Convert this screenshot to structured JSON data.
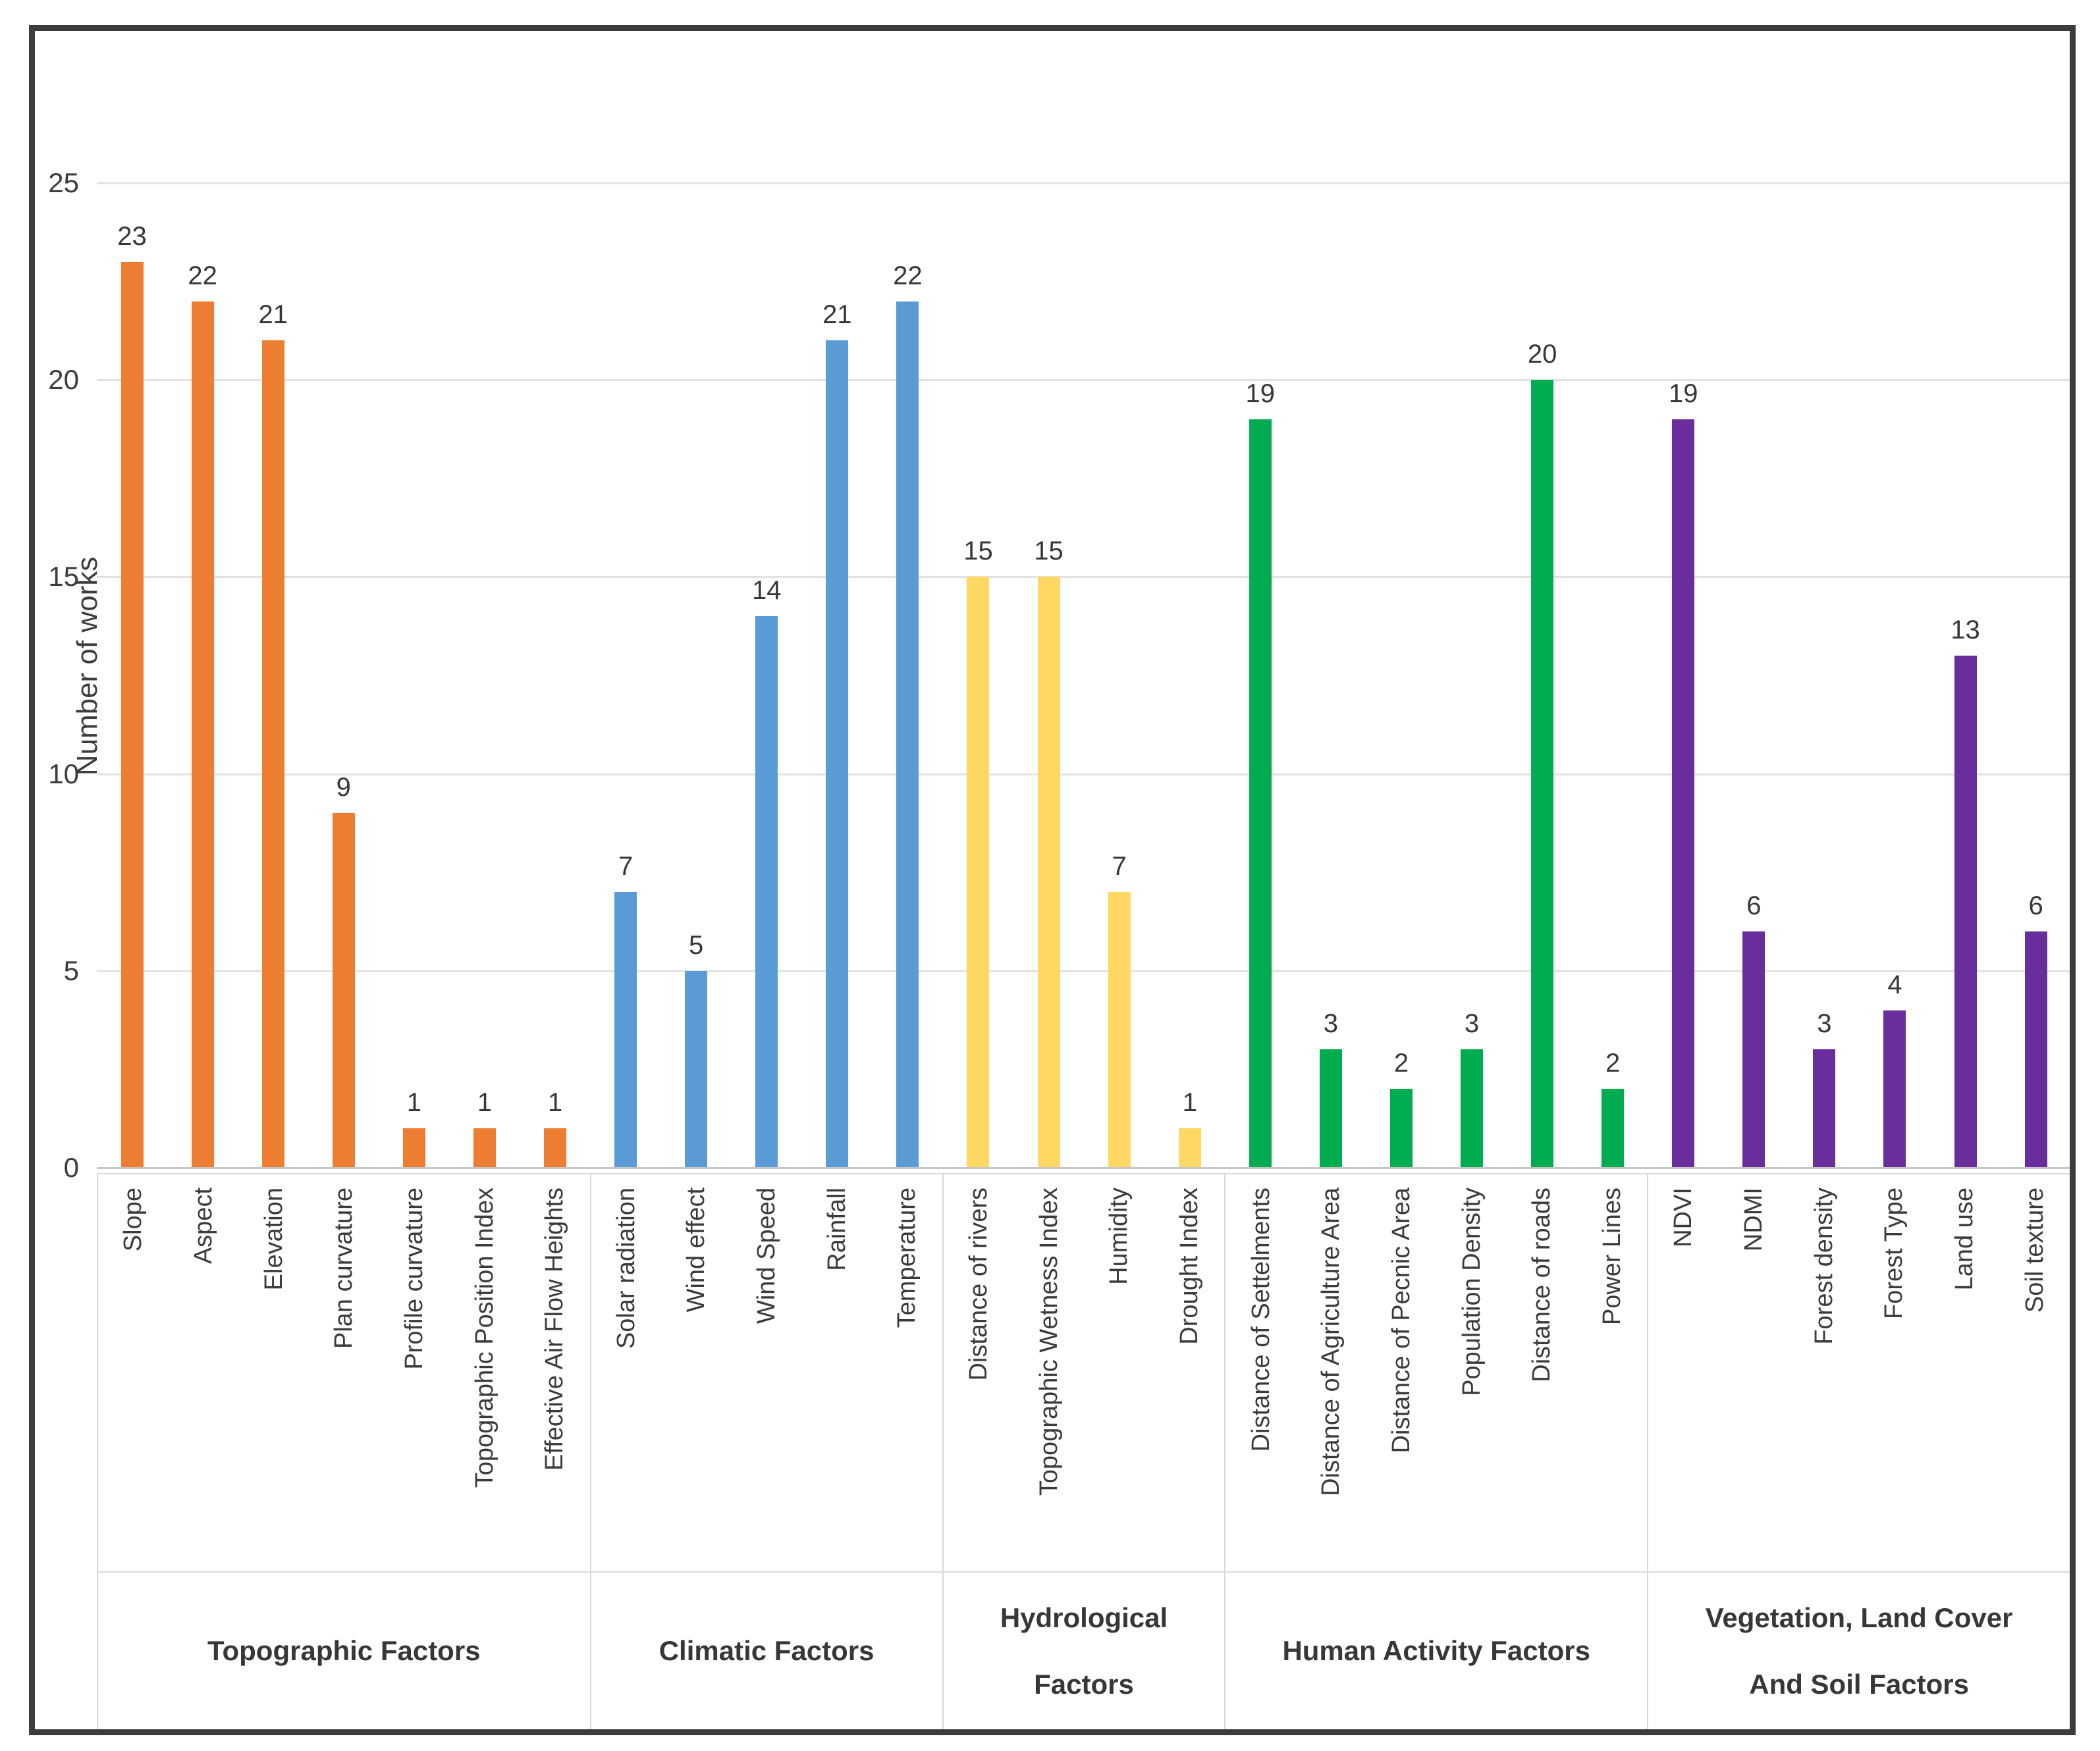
{
  "chart_data": {
    "type": "bar",
    "title": "",
    "ylabel": "Number of works",
    "xlabel": "",
    "ylim": [
      0,
      25
    ],
    "yticks": [
      0,
      5,
      10,
      15,
      20,
      25
    ],
    "grid": "horizontal",
    "legend": "none",
    "value_labels": true,
    "groups": [
      {
        "category": "Topographic Factors",
        "category_lines": [
          "Topographic Factors"
        ],
        "color": "#ED7D31",
        "items": [
          {
            "label": "Slope",
            "value": 23
          },
          {
            "label": "Aspect",
            "value": 22
          },
          {
            "label": "Elevation",
            "value": 21
          },
          {
            "label": "Plan curvature",
            "value": 9
          },
          {
            "label": "Profile curvature",
            "value": 1
          },
          {
            "label": "Topographic Position Index",
            "value": 1
          },
          {
            "label": "Effective Air Flow Heights",
            "value": 1
          }
        ]
      },
      {
        "category": "Climatic Factors",
        "category_lines": [
          "Climatic Factors"
        ],
        "color": "#5B9BD5",
        "items": [
          {
            "label": "Solar radiation",
            "value": 7
          },
          {
            "label": "Wind effect",
            "value": 5
          },
          {
            "label": "Wind Speed",
            "value": 14
          },
          {
            "label": "Rainfall",
            "value": 21
          },
          {
            "label": "Temperature",
            "value": 22
          }
        ]
      },
      {
        "category": "Hydrological Factors",
        "category_lines": [
          "Hydrological",
          "Factors"
        ],
        "color": "#FFD763",
        "items": [
          {
            "label": "Distance of rivers",
            "value": 15
          },
          {
            "label": "Topographic Wetness Index",
            "value": 15
          },
          {
            "label": "Humidity",
            "value": 7
          },
          {
            "label": "Drought Index",
            "value": 1
          }
        ]
      },
      {
        "category": "Human Activity Factors",
        "category_lines": [
          "Human Activity Factors"
        ],
        "color": "#00AC50",
        "items": [
          {
            "label": "Distance of Settelments",
            "value": 19
          },
          {
            "label": "Distance of Agriculture Area",
            "value": 3
          },
          {
            "label": "Distance of Pecnic Area",
            "value": 2
          },
          {
            "label": "Population Density",
            "value": 3
          },
          {
            "label": "Distance of roads",
            "value": 20
          },
          {
            "label": "Power Lines",
            "value": 2
          }
        ]
      },
      {
        "category": "Vegetation, Land Cover And Soil Factors",
        "category_lines": [
          "Vegetation, Land Cover",
          "And Soil Factors"
        ],
        "color": "#6A2D9C",
        "items": [
          {
            "label": "NDVI",
            "value": 19
          },
          {
            "label": "NDMI",
            "value": 6
          },
          {
            "label": "Forest density",
            "value": 3
          },
          {
            "label": "Forest Type",
            "value": 4
          },
          {
            "label": "Land use",
            "value": 13
          },
          {
            "label": "Soil texture",
            "value": 6
          }
        ]
      }
    ]
  }
}
